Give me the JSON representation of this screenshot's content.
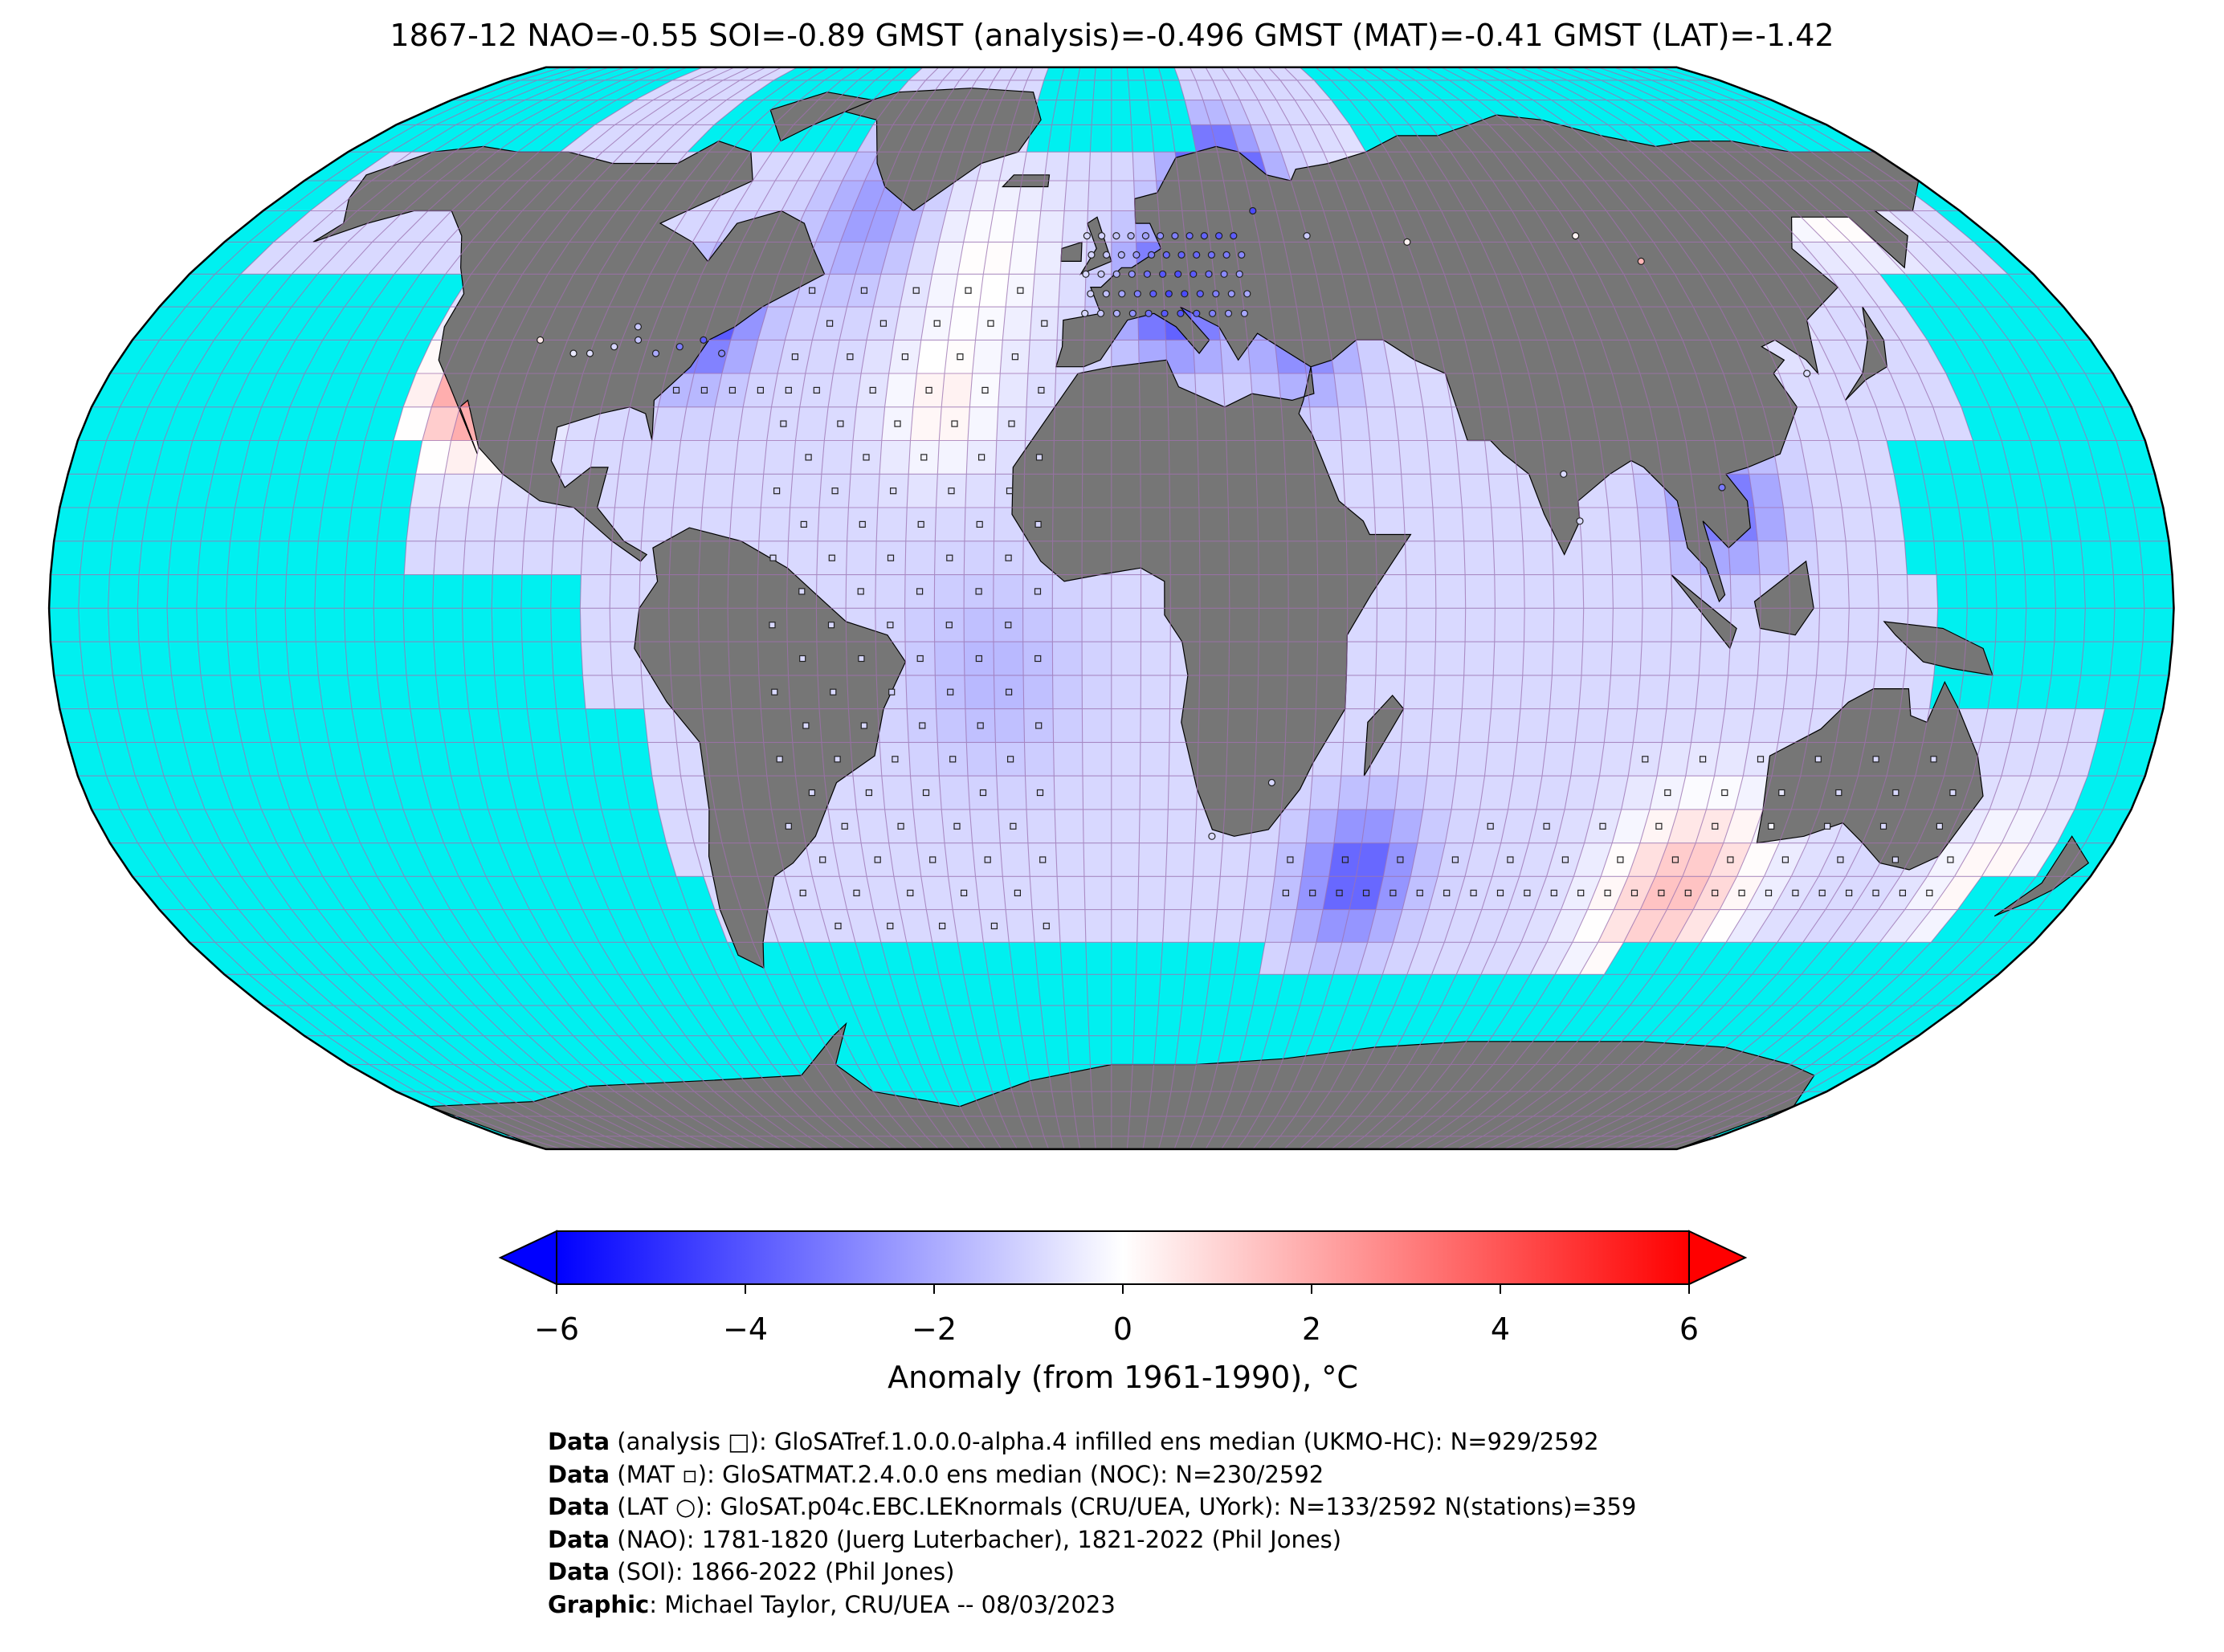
{
  "title": "1867-12 NAO=-0.55 SOI=-0.89 GMST (analysis)=-0.496 GMST (MAT)=-0.41 GMST (LAT)=-1.42",
  "colors": {
    "ocean_missing": "#00f0f0",
    "land_missing": "#767676",
    "min": "#0000ff",
    "zero": "#ffffff",
    "max": "#ff0000",
    "gridline": "#a070b0"
  },
  "colorbar": {
    "label": "Anomaly (from 1961-1990), °C",
    "ticks": [
      "−6",
      "−4",
      "−2",
      "0",
      "2",
      "4",
      "6"
    ],
    "range": [
      -6,
      6
    ]
  },
  "credits": [
    {
      "bold": "Data",
      "text": " (analysis □): GloSATref.1.0.0.0-alpha.4 infilled ens median (UKMO-HC): N=929/2592"
    },
    {
      "bold": "Data",
      "text": " (MAT ▫): GloSATMAT.2.4.0.0 ens median (NOC): N=230/2592"
    },
    {
      "bold": "Data",
      "text": " (LAT ○): GloSAT.p04c.EBC.LEKnormals (CRU/UEA, UYork): N=133/2592 N(stations)=359"
    },
    {
      "bold": "Data",
      "text": " (NAO): 1781-1820 (Juerg Luterbacher), 1821-2022 (Phil Jones)"
    },
    {
      "bold": "Data",
      "text": " (SOI): 1866-2022 (Phil Jones)"
    },
    {
      "bold": "Graphic",
      "text": ": Michael Taylor, CRU/UEA -- 08/03/2023"
    }
  ]
}
